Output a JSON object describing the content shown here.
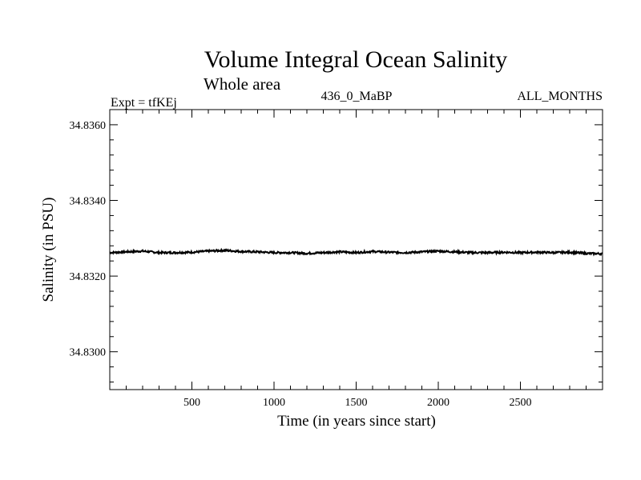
{
  "chart_data": {
    "type": "line",
    "title": "Volume Integral Ocean Salinity",
    "subtitle": "Whole area",
    "experiment": "Expt = tfKEj",
    "run_label": "436_0_MaBP",
    "months_label": "ALL_MONTHS",
    "xlabel": "Time (in years since start)",
    "ylabel": "Salinity (in PSU)",
    "xlim": [
      0,
      3000
    ],
    "ylim": [
      34.829,
      34.8364
    ],
    "xticks": [
      500,
      1000,
      1500,
      2000,
      2500
    ],
    "xtick_labels": [
      "500",
      "1000",
      "1500",
      "2000",
      "2500"
    ],
    "yticks": [
      34.83,
      34.832,
      34.834,
      34.836
    ],
    "ytick_labels": [
      "34.8300",
      "34.8320",
      "34.8340",
      "34.8360"
    ],
    "grid": false,
    "line_color": "#000000",
    "series": [
      {
        "x": [
          0,
          100,
          200,
          300,
          400,
          500,
          600,
          700,
          800,
          900,
          1000,
          1100,
          1200,
          1300,
          1400,
          1500,
          1600,
          1700,
          1800,
          1900,
          2000,
          2100,
          2200,
          2300,
          2400,
          2500,
          2600,
          2700,
          2800,
          2900,
          3000
        ],
        "values": [
          34.83262,
          34.83264,
          34.83266,
          34.83262,
          34.83262,
          34.83263,
          34.83266,
          34.83268,
          34.83265,
          34.83264,
          34.83262,
          34.83262,
          34.8326,
          34.83262,
          34.83264,
          34.83262,
          34.83265,
          34.83263,
          34.83262,
          34.83264,
          34.83266,
          34.83264,
          34.83262,
          34.83262,
          34.83263,
          34.83262,
          34.83263,
          34.83262,
          34.83263,
          34.8326,
          34.83259
        ]
      }
    ]
  }
}
